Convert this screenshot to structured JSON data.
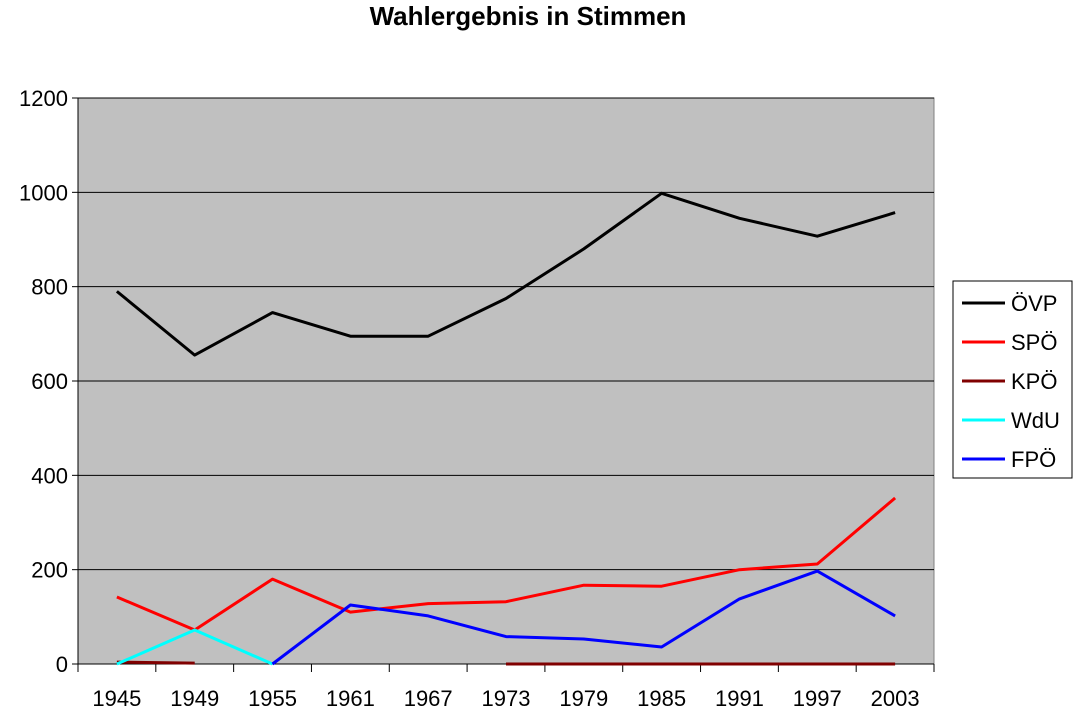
{
  "chart_data": {
    "type": "line",
    "title": "Wahlergebnis in Stimmen",
    "xlabel": "",
    "ylabel": "",
    "categories": [
      "1945",
      "1949",
      "1955",
      "1961",
      "1967",
      "1973",
      "1979",
      "1985",
      "1991",
      "1997",
      "2003"
    ],
    "ylim": [
      0,
      1200
    ],
    "yticks": [
      0,
      200,
      400,
      600,
      800,
      1000,
      1200
    ],
    "grid": true,
    "legend_position": "right",
    "plot_background": "#c0c0c0",
    "series": [
      {
        "name": "ÖVP",
        "color": "#000000",
        "values": [
          790,
          655,
          745,
          695,
          695,
          775,
          880,
          998,
          945,
          907,
          957
        ]
      },
      {
        "name": "SPÖ",
        "color": "#ff0000",
        "values": [
          142,
          72,
          180,
          110,
          128,
          132,
          167,
          165,
          200,
          212,
          352
        ]
      },
      {
        "name": "KPÖ",
        "color": "#800000",
        "values": [
          4,
          2,
          null,
          null,
          null,
          0,
          0,
          0,
          0,
          0,
          0
        ]
      },
      {
        "name": "WdU",
        "color": "#00ffff",
        "values": [
          0,
          72,
          0,
          null,
          null,
          null,
          null,
          null,
          null,
          null,
          null
        ]
      },
      {
        "name": "FPÖ",
        "color": "#0000ff",
        "values": [
          null,
          null,
          0,
          125,
          102,
          58,
          53,
          36,
          138,
          197,
          102
        ]
      }
    ]
  }
}
